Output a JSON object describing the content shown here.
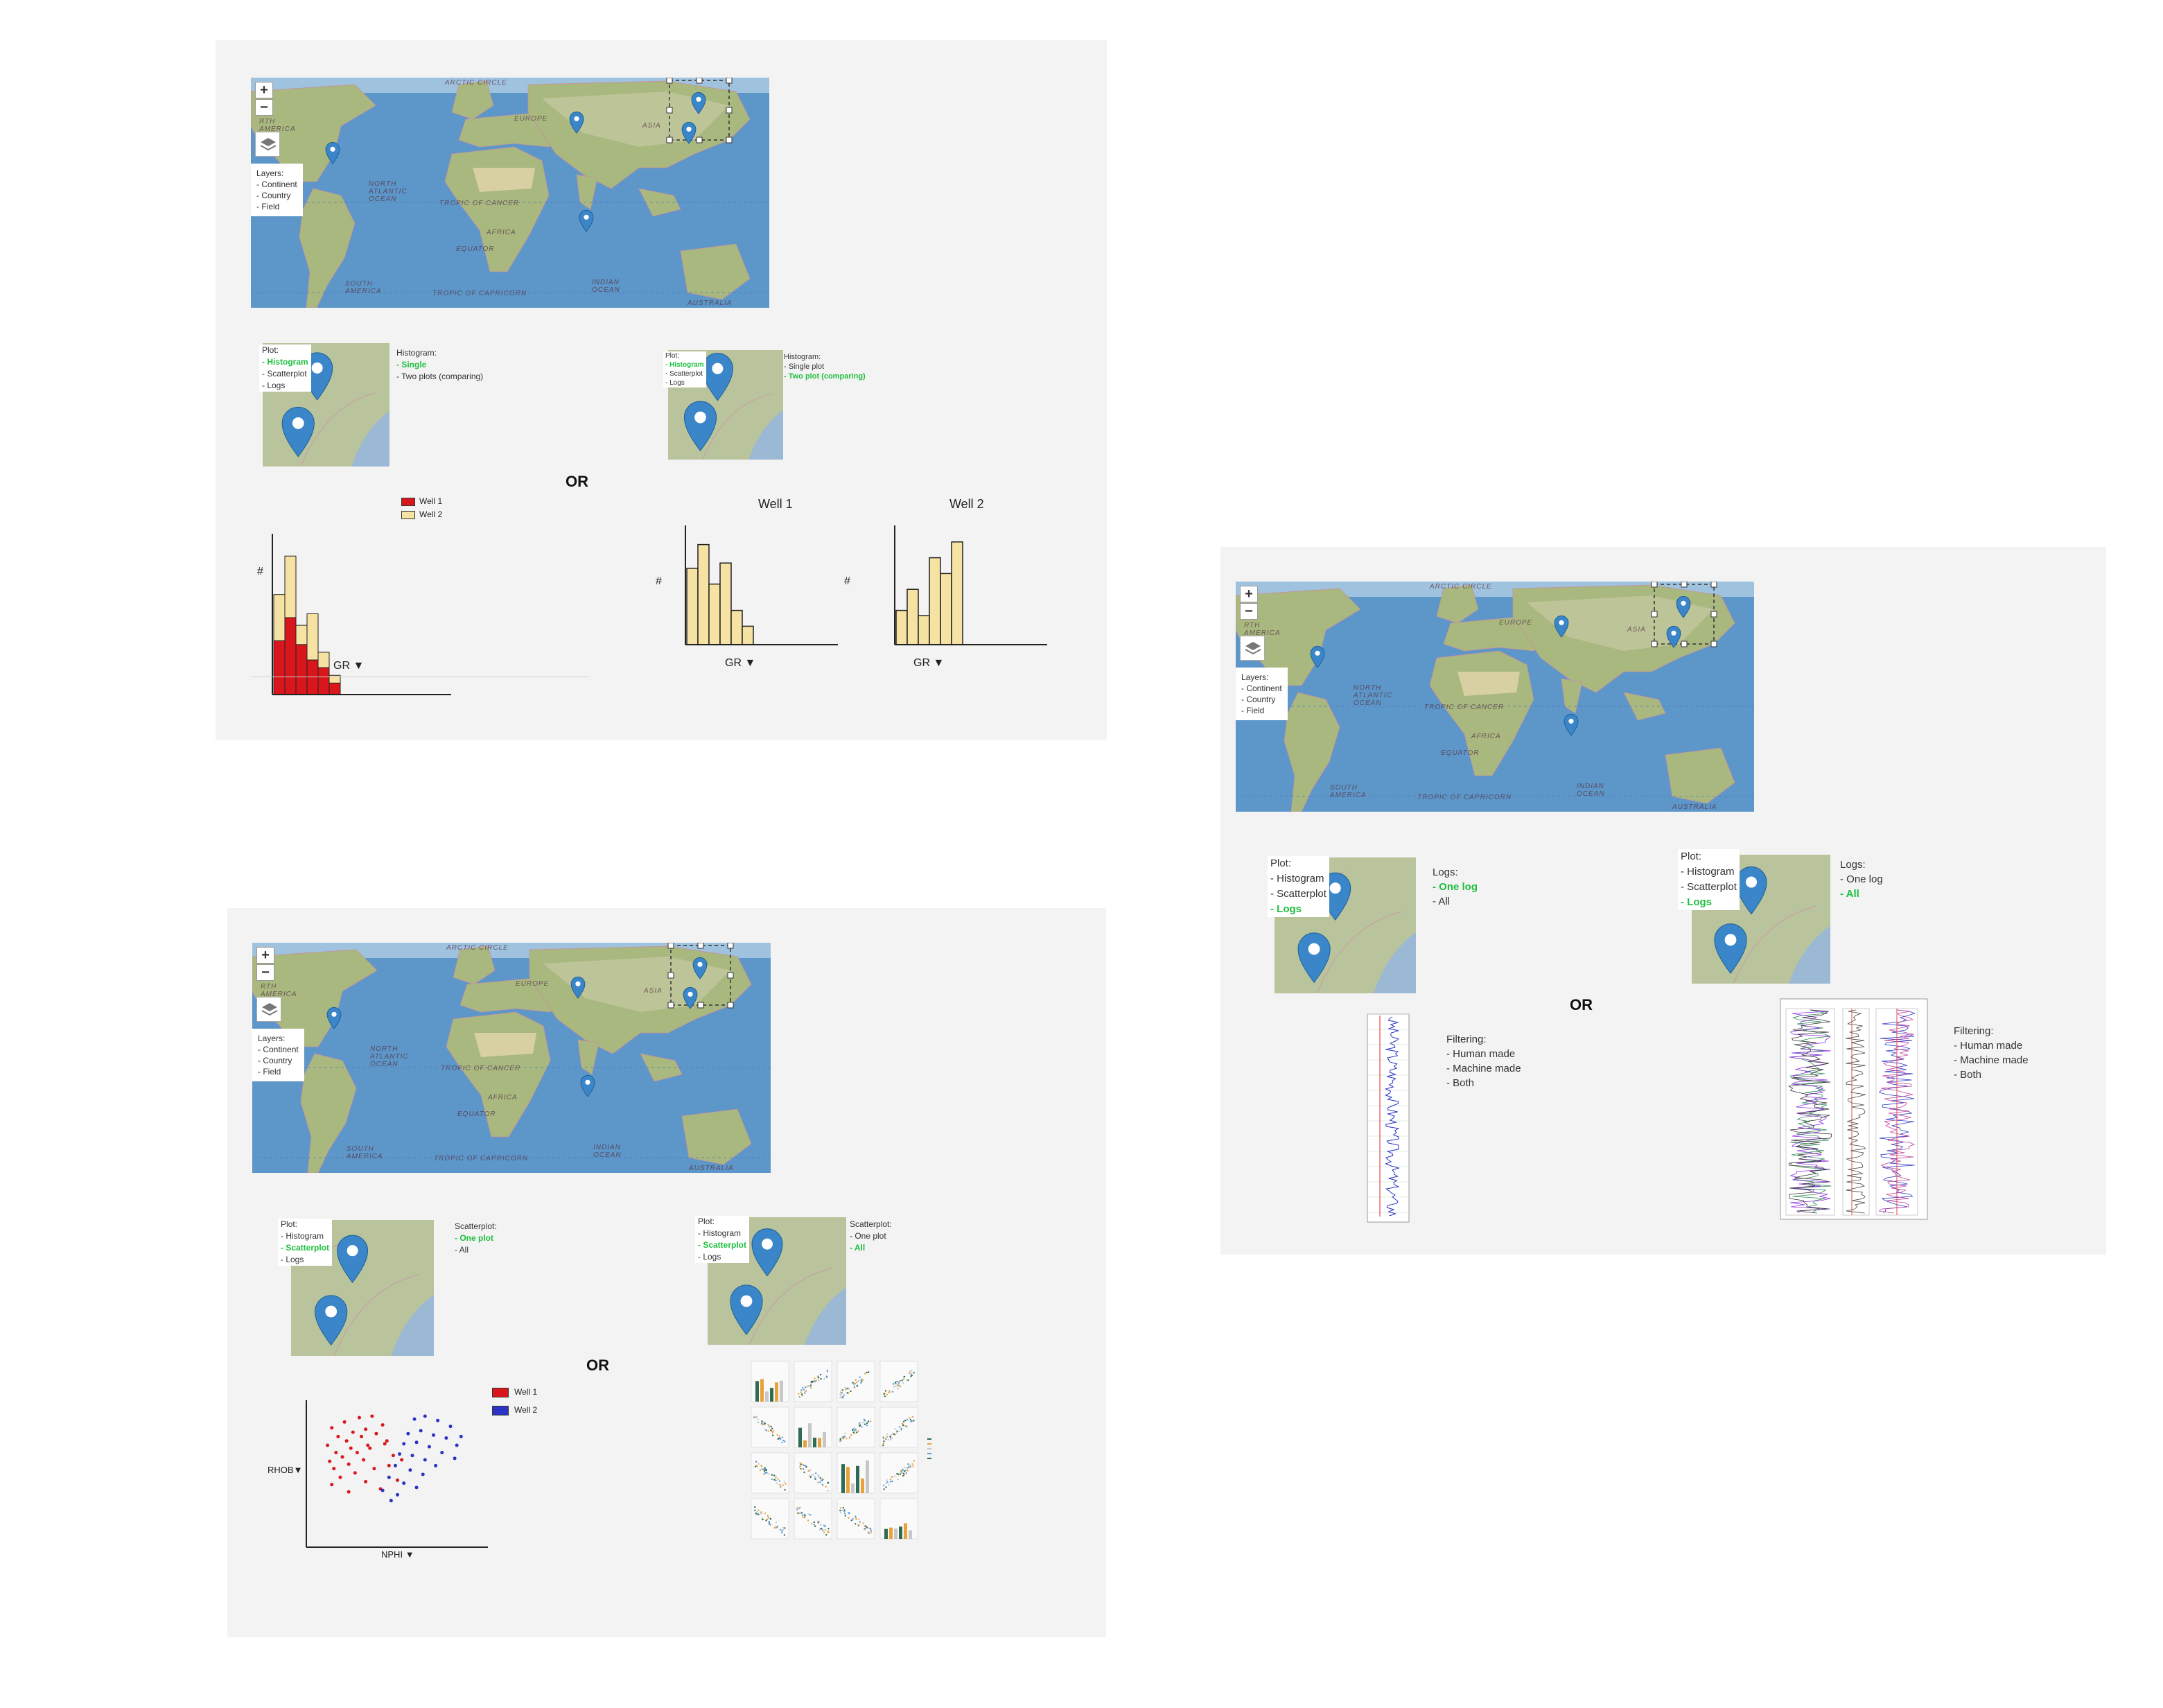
{
  "map": {
    "zoom_in": "+",
    "zoom_out": "−",
    "layers_title": "Layers:",
    "layers": [
      "- Continent",
      "- Country",
      "- Field"
    ],
    "labels": {
      "arctic": "ARCTIC CIRCLE",
      "europe": "EUROPE",
      "asia": "ASIA",
      "america": "RTH\nAMERICA",
      "n_atlantic": "NORTH\nATLANTIC\nOCEAN",
      "tropic_cancer": "TROPIC OF CANCER",
      "africa": "AFRICA",
      "equator": "EQUATOR",
      "s_america": "SOUTH\nAMERICA",
      "tropic_capricorn": "TROPIC OF CAPRICORN",
      "indian": "INDIAN\nOCEAN",
      "australia": "AUSTRALIA"
    },
    "icons": {
      "layers": "layers-icon",
      "marker": "map-pin-icon"
    }
  },
  "panel_histogram": {
    "left_menu": {
      "title": "Plot:",
      "items": [
        "- Histogram",
        "- Scatterplot",
        "- Logs"
      ],
      "selected": 0
    },
    "left_sub": {
      "title": "Histogram:",
      "items": [
        "- Single",
        "- Two plots (comparing)"
      ],
      "selected": 0
    },
    "right_menu": {
      "title": "Plot:",
      "items": [
        "- Histogram",
        "- Scatterplot",
        "- Logs"
      ],
      "selected": 0
    },
    "right_sub": {
      "title": "Histogram:",
      "items": [
        "- Single plot",
        "- Two plot (comparing)"
      ],
      "selected": 1
    },
    "or": "OR",
    "legend": [
      "Well 1",
      "Well 2"
    ],
    "y_label": "#",
    "x_label": "GR",
    "well1_title": "Well 1",
    "well2_title": "Well 2"
  },
  "panel_scatter": {
    "left_menu": {
      "title": "Plot:",
      "items": [
        "- Histogram",
        "- Scatterplot",
        "- Logs"
      ],
      "selected": 1
    },
    "left_sub": {
      "title": "Scatterplot:",
      "items": [
        "- One plot",
        "- All"
      ],
      "selected": 0
    },
    "right_menu": {
      "title": "Plot:",
      "items": [
        "- Histogram",
        "- Scatterplot",
        "- Logs"
      ],
      "selected": 1
    },
    "right_sub": {
      "title": "Scatterplot:",
      "items": [
        "- One plot",
        "- All"
      ],
      "selected": 1
    },
    "or": "OR",
    "legend": [
      "Well 1",
      "Well 2"
    ],
    "y_label": "RHOB",
    "x_label": "NPHI"
  },
  "panel_logs": {
    "left_menu": {
      "title": "Plot:",
      "items": [
        "- Histogram",
        "- Scatterplot",
        "- Logs"
      ],
      "selected": 2
    },
    "left_sub": {
      "title": "Logs:",
      "items": [
        "- One log",
        "- All"
      ],
      "selected": 0
    },
    "right_menu": {
      "title": "Plot:",
      "items": [
        "- Histogram",
        "- Scatterplot",
        "- Logs"
      ],
      "selected": 2
    },
    "right_sub": {
      "title": "Logs:",
      "items": [
        "- One log",
        "- All"
      ],
      "selected": 1
    },
    "or": "OR",
    "filter_left": {
      "title": "Filtering:",
      "items": [
        "- Human made",
        "- Machine made",
        "- Both"
      ]
    },
    "filter_right": {
      "title": "Filtering:",
      "items": [
        "- Human made",
        "- Machine made",
        "- Both"
      ]
    }
  },
  "chart_data": [
    {
      "type": "bar",
      "stacked": true,
      "series": [
        {
          "name": "Well 1",
          "values": [
            2.8,
            4.0,
            2.6,
            1.8,
            1.4,
            0.6
          ]
        },
        {
          "name": "Well 2",
          "values": [
            2.4,
            3.2,
            1.0,
            2.4,
            0.8,
            0.4
          ]
        }
      ],
      "xlabel": "GR",
      "ylabel": "#",
      "colors": [
        "#d9161c",
        "#f6e2a2"
      ]
    },
    {
      "type": "bar",
      "title": "Well 1",
      "values": [
        5.8,
        7.6,
        4.6,
        6.2,
        2.6,
        1.4
      ],
      "xlabel": "GR",
      "ylabel": "#",
      "colors": [
        "#f6e2a2"
      ]
    },
    {
      "type": "bar",
      "title": "Well 2",
      "values": [
        2.6,
        4.2,
        2.2,
        6.6,
        5.4,
        7.8
      ],
      "xlabel": "GR",
      "ylabel": "#",
      "colors": [
        "#f6e2a2"
      ]
    },
    {
      "type": "scatter",
      "xlabel": "NPHI",
      "ylabel": "RHOB",
      "series": [
        {
          "name": "Well 1",
          "color": "#d9161c",
          "x": [
            1.2,
            1.8,
            2.5,
            3.1,
            1.5,
            2.2,
            2.8,
            3.6,
            1.0,
            1.9,
            2.6,
            3.3,
            1.4,
            2.1,
            2.9,
            3.8,
            1.1,
            1.7,
            2.4,
            3.0,
            3.7,
            1.3,
            2.0,
            2.7,
            4.1,
            1.6,
            2.3,
            3.2,
            3.9,
            4.5,
            2.8,
            1.2,
            3.5,
            4.3,
            2.0
          ],
          "y": [
            8.2,
            8.6,
            8.9,
            9.0,
            7.6,
            7.9,
            8.1,
            8.4,
            7.0,
            7.3,
            7.6,
            7.8,
            6.5,
            6.8,
            7.0,
            7.3,
            5.9,
            6.2,
            6.5,
            6.8,
            7.1,
            5.4,
            5.7,
            6.0,
            6.3,
            4.8,
            5.1,
            5.4,
            5.6,
            6.0,
            4.5,
            4.3,
            4.0,
            4.6,
            3.8
          ]
        },
        {
          "name": "Well 2",
          "color": "#2b32c4",
          "x": [
            5.1,
            5.6,
            6.2,
            6.8,
            7.3,
            4.8,
            5.4,
            6.0,
            6.6,
            7.1,
            4.6,
            5.2,
            5.8,
            6.4,
            7.0,
            4.4,
            5.0,
            5.6,
            6.1,
            4.2,
            4.9,
            5.5,
            3.9,
            4.6,
            5.2,
            3.6,
            4.3,
            4.0
          ],
          "y": [
            8.8,
            9.0,
            8.7,
            8.3,
            7.6,
            7.8,
            8.0,
            7.7,
            7.5,
            7.0,
            7.1,
            7.2,
            6.9,
            6.5,
            6.1,
            6.4,
            6.3,
            6.0,
            5.6,
            5.6,
            5.3,
            5.0,
            4.8,
            4.4,
            4.1,
            3.9,
            3.6,
            3.2
          ]
        }
      ]
    },
    {
      "type": "scatter",
      "note": "scatterplot matrix, 4x4"
    },
    {
      "type": "line",
      "note": "single well log track"
    },
    {
      "type": "line",
      "note": "multi-track well logs"
    }
  ]
}
